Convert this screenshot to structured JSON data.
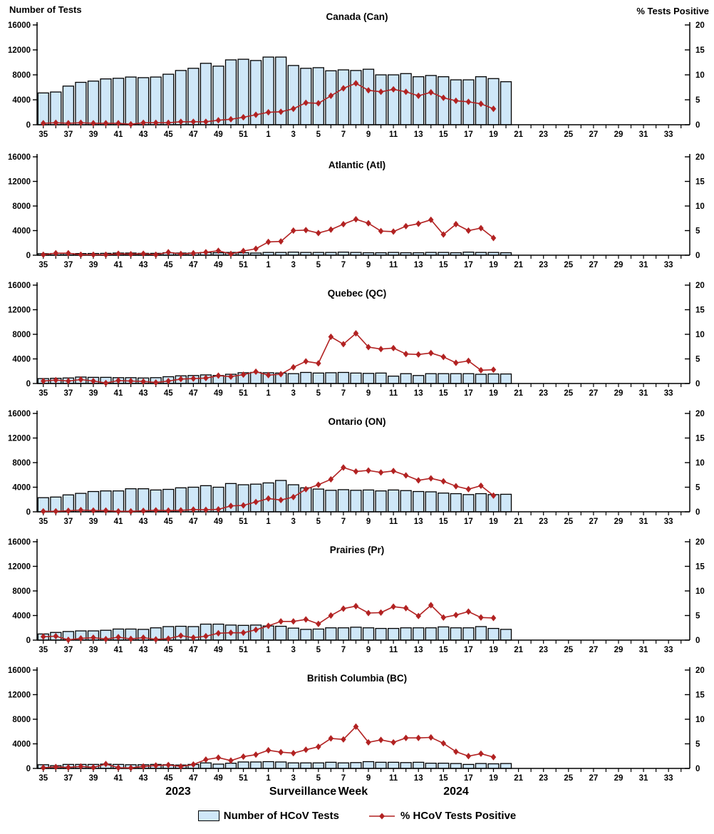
{
  "page": {
    "left_axis_label": "Number of Tests",
    "right_axis_label": "% Tests Positive",
    "x_axis_title": "Surveillance Week",
    "year_left": "2023",
    "year_right": "2024",
    "legend": {
      "bars": "Number of HCoV Tests",
      "line": "% HCoV Tests Positive"
    }
  },
  "colors": {
    "bar_fill": "#cfe7f8",
    "bar_stroke": "#000000",
    "line": "#b22222",
    "text": "#000000"
  },
  "axes": {
    "left_ticks": [
      0,
      4000,
      8000,
      12000,
      16000
    ],
    "right_ticks": [
      0,
      5,
      10,
      15,
      20
    ],
    "left_ylim": [
      0,
      16000
    ],
    "right_ylim": [
      0,
      20
    ],
    "week_tick_labels": [
      "35",
      "37",
      "39",
      "41",
      "43",
      "45",
      "47",
      "49",
      "51",
      "1",
      "3",
      "5",
      "7",
      "9",
      "11",
      "13",
      "15",
      "17",
      "19",
      "21",
      "23",
      "25",
      "27",
      "29",
      "31",
      "33"
    ],
    "weeks": [
      "35",
      "36",
      "37",
      "38",
      "39",
      "40",
      "41",
      "42",
      "43",
      "44",
      "45",
      "46",
      "47",
      "48",
      "49",
      "50",
      "51",
      "52",
      "1",
      "2",
      "3",
      "4",
      "5",
      "6",
      "7",
      "8",
      "9",
      "10",
      "11",
      "12",
      "13",
      "14",
      "15",
      "16",
      "17",
      "18",
      "19",
      "20"
    ],
    "axis_week_slots": 52
  },
  "chart_data": [
    {
      "type": "combo-bar-line",
      "title": "Canada (Can)",
      "bars_series": "Number of HCoV Tests",
      "line_series": "% HCoV Tests Positive",
      "bars": [
        5100,
        5250,
        6200,
        6800,
        7000,
        7350,
        7450,
        7650,
        7550,
        7650,
        8100,
        8700,
        9050,
        9850,
        9400,
        10400,
        10500,
        10300,
        10850,
        10850,
        9500,
        9050,
        9150,
        8650,
        8800,
        8700,
        8900,
        8000,
        8000,
        8200,
        7700,
        7900,
        7700,
        7200,
        7200,
        7700,
        7400,
        6900
      ],
      "line": [
        0.3,
        0.4,
        0.3,
        0.4,
        0.3,
        0.3,
        0.3,
        0.1,
        0.4,
        0.4,
        0.4,
        0.6,
        0.6,
        0.6,
        0.9,
        1.1,
        1.5,
        2.0,
        2.5,
        2.6,
        3.2,
        4.4,
        4.3,
        5.8,
        7.3,
        8.3,
        6.9,
        6.6,
        7.1,
        6.6,
        5.8,
        6.5,
        5.4,
        4.8,
        4.6,
        4.2,
        3.2,
        null
      ]
    },
    {
      "type": "combo-bar-line",
      "title": "Atlantic (Atl)",
      "bars_series": "Number of HCoV Tests",
      "line_series": "% HCoV Tests Positive",
      "bars": [
        250,
        280,
        260,
        270,
        280,
        300,
        350,
        350,
        300,
        300,
        400,
        350,
        350,
        450,
        400,
        450,
        400,
        350,
        450,
        450,
        500,
        450,
        450,
        450,
        500,
        450,
        400,
        400,
        450,
        400,
        400,
        450,
        450,
        400,
        500,
        450,
        450,
        400
      ],
      "line": [
        0.1,
        0.4,
        0.4,
        0.1,
        0.1,
        0.1,
        0.3,
        0.2,
        0.3,
        0.1,
        0.6,
        0.25,
        0.4,
        0.6,
        0.9,
        0.25,
        0.85,
        1.3,
        2.7,
        2.8,
        5.0,
        5.1,
        4.5,
        5.2,
        6.3,
        7.3,
        6.5,
        4.9,
        4.8,
        5.9,
        6.4,
        7.2,
        4.2,
        6.3,
        5.0,
        5.5,
        3.5,
        null
      ]
    },
    {
      "type": "combo-bar-line",
      "title": "Quebec (QC)",
      "bars_series": "Number of HCoV Tests",
      "line_series": "% HCoV Tests Positive",
      "bars": [
        800,
        850,
        900,
        1050,
        1000,
        1000,
        950,
        950,
        900,
        950,
        1100,
        1250,
        1300,
        1400,
        1300,
        1500,
        1750,
        1800,
        1750,
        1700,
        1600,
        1800,
        1700,
        1750,
        1800,
        1700,
        1650,
        1700,
        1200,
        1600,
        1300,
        1600,
        1600,
        1600,
        1600,
        1500,
        1550,
        1550
      ],
      "line": [
        0.5,
        0.7,
        0.5,
        0.8,
        0.5,
        0.1,
        0.6,
        0.5,
        0.4,
        0.2,
        0.5,
        0.9,
        1.0,
        1.1,
        1.6,
        1.4,
        1.8,
        2.4,
        1.7,
        1.9,
        3.3,
        4.5,
        4.1,
        9.5,
        8.0,
        10.2,
        7.4,
        7.0,
        7.2,
        6.0,
        5.9,
        6.2,
        5.4,
        4.2,
        4.6,
        2.7,
        2.8,
        null
      ]
    },
    {
      "type": "combo-bar-line",
      "title": "Ontario (ON)",
      "bars_series": "Number of HCoV Tests",
      "line_series": "% HCoV Tests Positive",
      "bars": [
        2300,
        2400,
        2750,
        3000,
        3300,
        3400,
        3400,
        3750,
        3750,
        3550,
        3650,
        3900,
        4000,
        4250,
        4000,
        4600,
        4400,
        4500,
        4700,
        5100,
        4400,
        3900,
        3700,
        3500,
        3600,
        3500,
        3550,
        3400,
        3550,
        3450,
        3300,
        3250,
        3050,
        2950,
        2800,
        2950,
        2800,
        2850
      ],
      "line": [
        0.1,
        0.1,
        0.2,
        0.35,
        0.25,
        0.25,
        0.1,
        0.1,
        0.2,
        0.3,
        0.25,
        0.3,
        0.45,
        0.4,
        0.5,
        1.2,
        1.3,
        2.0,
        2.7,
        2.4,
        3.0,
        4.6,
        5.5,
        6.6,
        9.0,
        8.2,
        8.4,
        8.0,
        8.3,
        7.4,
        6.4,
        6.8,
        6.2,
        5.2,
        4.6,
        5.3,
        3.3,
        null
      ]
    },
    {
      "type": "combo-bar-line",
      "title": "Prairies (Pr)",
      "bars_series": "Number of HCoV Tests",
      "line_series": "% HCoV Tests Positive",
      "bars": [
        1000,
        1250,
        1400,
        1500,
        1500,
        1600,
        1800,
        1800,
        1750,
        2000,
        2200,
        2250,
        2200,
        2600,
        2600,
        2450,
        2400,
        2450,
        2300,
        2250,
        1950,
        1750,
        1800,
        2000,
        2000,
        2100,
        2000,
        1900,
        1900,
        2000,
        2000,
        2000,
        2150,
        2000,
        2000,
        2200,
        1900,
        1750
      ],
      "line": [
        0.7,
        0.8,
        0.05,
        0.35,
        0.5,
        0.2,
        0.6,
        0.25,
        0.5,
        0.15,
        0.3,
        0.9,
        0.5,
        0.8,
        1.4,
        1.5,
        1.5,
        2.1,
        2.9,
        3.8,
        3.8,
        4.2,
        3.3,
        5.0,
        6.4,
        6.9,
        5.5,
        5.6,
        6.8,
        6.5,
        4.9,
        7.1,
        4.6,
        5.1,
        5.8,
        4.6,
        4.5,
        null
      ]
    },
    {
      "type": "combo-bar-line",
      "title": "British Columbia (BC)",
      "bars_series": "Number of HCoV Tests",
      "line_series": "% HCoV Tests Positive",
      "bars": [
        600,
        450,
        650,
        650,
        650,
        700,
        650,
        600,
        600,
        650,
        600,
        550,
        650,
        900,
        700,
        850,
        1050,
        1050,
        1100,
        1050,
        900,
        900,
        900,
        1000,
        900,
        950,
        1100,
        1000,
        1000,
        950,
        1000,
        850,
        850,
        800,
        650,
        800,
        750,
        800
      ],
      "line": [
        0.15,
        0.3,
        0.2,
        0.4,
        0.2,
        0.9,
        0.15,
        0.1,
        0.4,
        0.6,
        0.7,
        0.4,
        0.8,
        1.8,
        2.2,
        1.6,
        2.4,
        2.8,
        3.7,
        3.3,
        3.1,
        3.8,
        4.4,
        6.1,
        5.9,
        8.5,
        5.3,
        5.8,
        5.3,
        6.2,
        6.2,
        6.3,
        5.1,
        3.4,
        2.5,
        3.0,
        2.3,
        null
      ]
    }
  ]
}
